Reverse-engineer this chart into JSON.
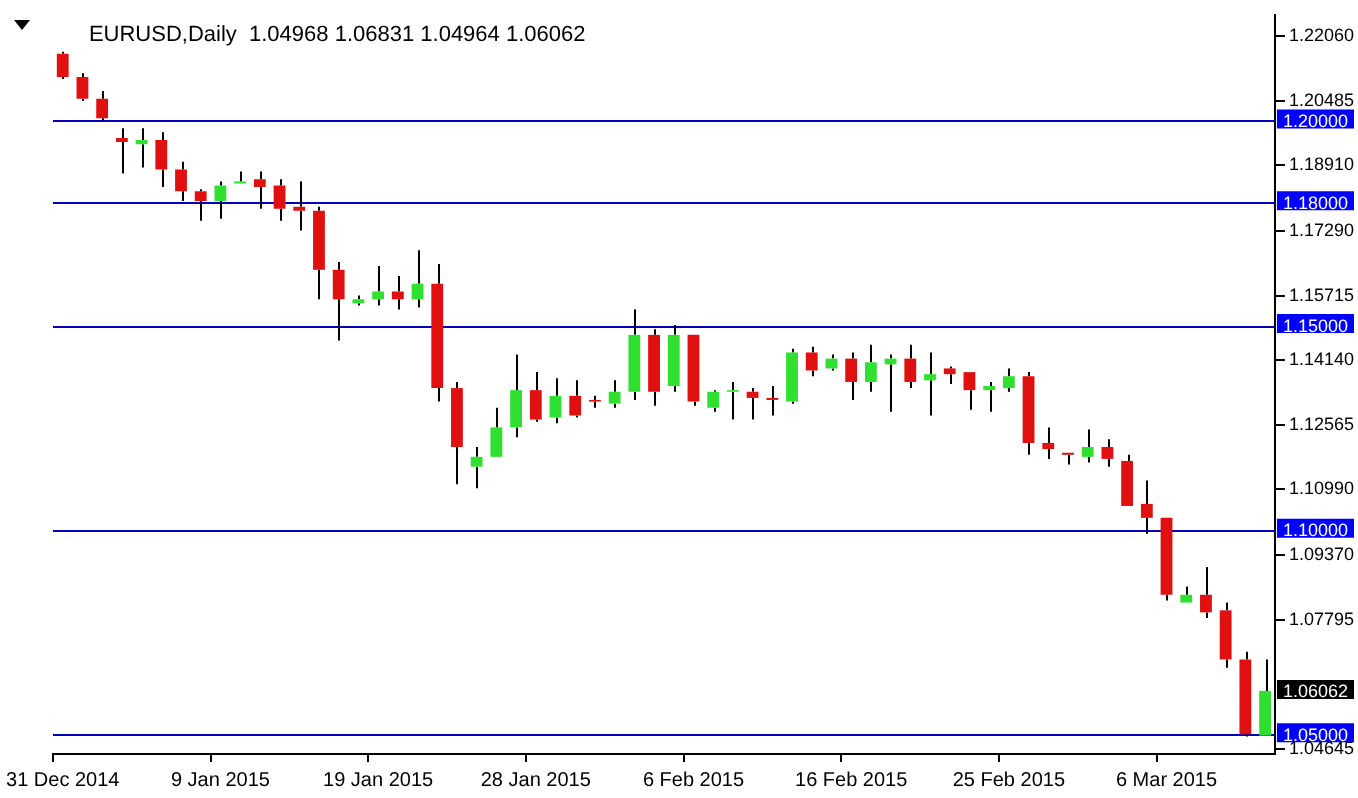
{
  "chart_data": {
    "type": "candlestick",
    "title": "EURUSD,Daily  1.04968 1.06831 1.04964 1.06062",
    "categories": [
      "31 Dec 2014",
      null,
      null,
      null,
      null,
      null,
      null,
      null,
      "9 Jan 2015",
      null,
      null,
      null,
      null,
      null,
      null,
      null,
      "19 Jan 2015",
      null,
      null,
      null,
      null,
      null,
      null,
      null,
      "28 Jan 2015",
      null,
      null,
      null,
      null,
      null,
      null,
      null,
      "6 Feb 2015",
      null,
      null,
      null,
      null,
      null,
      null,
      null,
      "16 Feb 2015",
      null,
      null,
      null,
      null,
      null,
      null,
      null,
      "25 Feb 2015",
      null,
      null,
      null,
      null,
      null,
      null,
      null,
      "6 Mar 2015",
      null,
      null,
      null,
      null,
      null
    ],
    "ohlc": [
      [
        1.2163,
        1.2168,
        1.2101,
        1.2106
      ],
      [
        1.2106,
        1.2115,
        1.2048,
        1.2053
      ],
      [
        1.2053,
        1.2072,
        1.2,
        1.2005
      ],
      [
        1.1957,
        1.1981,
        1.187,
        1.1947
      ],
      [
        1.1942,
        1.1981,
        1.1885,
        1.1952
      ],
      [
        1.1952,
        1.1971,
        1.1837,
        1.188
      ],
      [
        1.188,
        1.1899,
        1.1803,
        1.1827
      ],
      [
        1.1827,
        1.1832,
        1.1755,
        1.1803
      ],
      [
        1.1803,
        1.1851,
        1.176,
        1.1841
      ],
      [
        1.1846,
        1.1875,
        1.1846,
        1.1851
      ],
      [
        1.1856,
        1.1875,
        1.1784,
        1.1837
      ],
      [
        1.1841,
        1.1856,
        1.1755,
        1.1784
      ],
      [
        1.1789,
        1.1851,
        1.1731,
        1.1779
      ],
      [
        1.1779,
        1.1789,
        1.1563,
        1.1635
      ],
      [
        1.1635,
        1.1654,
        1.1462,
        1.1563
      ],
      [
        1.1553,
        1.1572,
        1.1548,
        1.1563
      ],
      [
        1.1563,
        1.1644,
        1.1548,
        1.1582
      ],
      [
        1.1582,
        1.162,
        1.1538,
        1.1563
      ],
      [
        1.1563,
        1.1683,
        1.1543,
        1.1601
      ],
      [
        1.1601,
        1.1649,
        1.1313,
        1.1346
      ],
      [
        1.1346,
        1.1361,
        1.1111,
        1.1202
      ],
      [
        1.1154,
        1.1202,
        1.1101,
        1.1178
      ],
      [
        1.1178,
        1.1298,
        1.1178,
        1.125
      ],
      [
        1.125,
        1.1428,
        1.1226,
        1.1341
      ],
      [
        1.1341,
        1.1385,
        1.1264,
        1.1269
      ],
      [
        1.1274,
        1.137,
        1.126,
        1.1327
      ],
      [
        1.1327,
        1.1365,
        1.1274,
        1.1279
      ],
      [
        1.1317,
        1.1327,
        1.1298,
        1.1313
      ],
      [
        1.1308,
        1.1365,
        1.1298,
        1.1337
      ],
      [
        1.1337,
        1.1538,
        1.1317,
        1.1476
      ],
      [
        1.1476,
        1.149,
        1.1303,
        1.1337
      ],
      [
        1.1351,
        1.15,
        1.1337,
        1.1476
      ],
      [
        1.1476,
        1.1476,
        1.1303,
        1.1313
      ],
      [
        1.1298,
        1.1341,
        1.1288,
        1.1337
      ],
      [
        1.1337,
        1.1361,
        1.1269,
        1.1341
      ],
      [
        1.1337,
        1.1346,
        1.1269,
        1.1322
      ],
      [
        1.1322,
        1.1351,
        1.1279,
        1.1317
      ],
      [
        1.1313,
        1.1442,
        1.1308,
        1.1433
      ],
      [
        1.1433,
        1.1447,
        1.1375,
        1.1389
      ],
      [
        1.1394,
        1.1428,
        1.1389,
        1.1418
      ],
      [
        1.1418,
        1.1433,
        1.1317,
        1.1361
      ],
      [
        1.1361,
        1.1452,
        1.1337,
        1.1409
      ],
      [
        1.1404,
        1.1428,
        1.1288,
        1.1418
      ],
      [
        1.1418,
        1.1452,
        1.1346,
        1.1361
      ],
      [
        1.1365,
        1.1433,
        1.1279,
        1.138
      ],
      [
        1.1394,
        1.1399,
        1.1356,
        1.138
      ],
      [
        1.1385,
        1.1385,
        1.1293,
        1.1341
      ],
      [
        1.1341,
        1.1361,
        1.1288,
        1.1351
      ],
      [
        1.1346,
        1.1394,
        1.1337,
        1.1375
      ],
      [
        1.1375,
        1.1385,
        1.1183,
        1.1212
      ],
      [
        1.1212,
        1.125,
        1.1173,
        1.1197
      ],
      [
        1.1188,
        1.1188,
        1.1159,
        1.1183
      ],
      [
        1.1178,
        1.1245,
        1.1164,
        1.1202
      ],
      [
        1.1202,
        1.1221,
        1.1154,
        1.1173
      ],
      [
        1.1168,
        1.1183,
        1.1058,
        1.1058
      ],
      [
        1.1063,
        1.112,
        1.099,
        1.1029
      ],
      [
        1.1029,
        1.1029,
        1.0827,
        1.0841
      ],
      [
        1.0822,
        1.0861,
        1.0822,
        1.0841
      ],
      [
        1.0841,
        1.0909,
        1.0784,
        1.0798
      ],
      [
        1.0803,
        1.0822,
        1.0663,
        1.0683
      ],
      [
        1.0683,
        1.0702,
        1.0495,
        1.05
      ],
      [
        1.04968,
        1.06831,
        1.04964,
        1.06062
      ]
    ],
    "colors": [
      "#e01010",
      "#e01010",
      "#e01010",
      "#e01010",
      "#30e030",
      "#e01010",
      "#e01010",
      "#e01010",
      "#30e030",
      "#30e030",
      "#e01010",
      "#e01010",
      "#e01010",
      "#e01010",
      "#e01010",
      "#30e030",
      "#30e030",
      "#e01010",
      "#30e030",
      "#e01010",
      "#e01010",
      "#30e030",
      "#30e030",
      "#30e030",
      "#e01010",
      "#30e030",
      "#e01010",
      "#e01010",
      "#30e030",
      "#30e030",
      "#e01010",
      "#30e030",
      "#e01010",
      "#30e030",
      "#30e030",
      "#e01010",
      "#e01010",
      "#30e030",
      "#e01010",
      "#30e030",
      "#e01010",
      "#30e030",
      "#30e030",
      "#e01010",
      "#30e030",
      "#e01010",
      "#e01010",
      "#30e030",
      "#30e030",
      "#e01010",
      "#e01010",
      "#e01010",
      "#30e030",
      "#e01010",
      "#e01010",
      "#e01010",
      "#e01010",
      "#30e030",
      "#e01010",
      "#e01010",
      "#e01010",
      "#30e030"
    ],
    "ylim": [
      1.0452,
      1.2258
    ],
    "yticks": [
      {
        "value": 1.2206,
        "label": "1.22060"
      },
      {
        "value": 1.20485,
        "label": "1.20485"
      },
      {
        "value": 1.1891,
        "label": "1.18910"
      },
      {
        "value": 1.1729,
        "label": "1.17290"
      },
      {
        "value": 1.15715,
        "label": "1.15715"
      },
      {
        "value": 1.1414,
        "label": "1.14140"
      },
      {
        "value": 1.12565,
        "label": "1.12565"
      },
      {
        "value": 1.1099,
        "label": "1.10990"
      },
      {
        "value": 1.0937,
        "label": "1.09370"
      },
      {
        "value": 1.07795,
        "label": "1.07795"
      },
      {
        "value": 1.04645,
        "label": "1.04645"
      }
    ],
    "ref_lines": [
      {
        "axis": "y",
        "value": 1.2,
        "label": "1.20000",
        "color": "#0000c0"
      },
      {
        "axis": "y",
        "value": 1.18,
        "label": "1.18000",
        "color": "#0000c0"
      },
      {
        "axis": "y",
        "value": 1.15,
        "label": "1.15000",
        "color": "#0000c0"
      },
      {
        "axis": "y",
        "value": 1.1,
        "label": "1.10000",
        "color": "#0000c0"
      },
      {
        "axis": "y",
        "value": 1.05,
        "label": "1.05000",
        "color": "#0000c0"
      }
    ],
    "annotations": [
      "1.06062"
    ],
    "grid": false,
    "legend": false
  }
}
